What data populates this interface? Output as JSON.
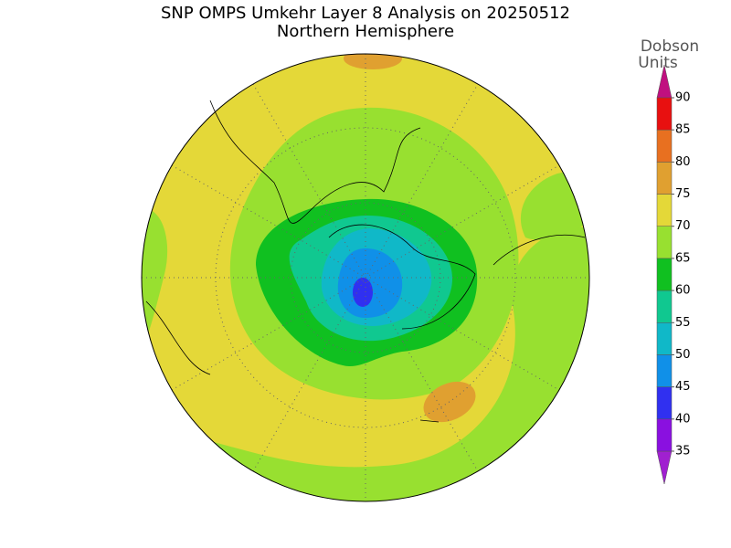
{
  "header": {
    "title": "SNP OMPS Umkehr Layer 8 Analysis on 20250512",
    "subtitle": "Northern Hemisphere"
  },
  "colorbar": {
    "label_lines": [
      "Dobson",
      "Units"
    ],
    "ticks": [
      35,
      40,
      45,
      50,
      55,
      60,
      65,
      70,
      75,
      80,
      85,
      90
    ],
    "below_color": "#a020d0",
    "above_color": "#c01080",
    "colors": [
      "#8a10e0",
      "#3030f0",
      "#1090e8",
      "#10b8c8",
      "#10c890",
      "#10c020",
      "#98e030",
      "#e4d838",
      "#e0a030",
      "#e87020",
      "#e81010"
    ]
  }
}
